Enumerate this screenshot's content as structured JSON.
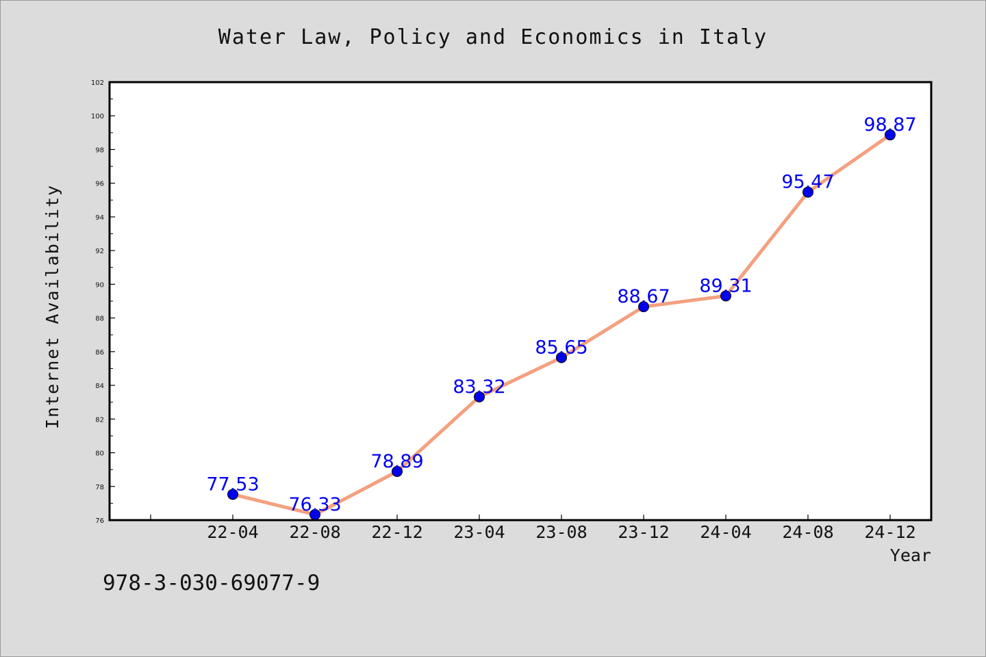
{
  "chart_data": {
    "type": "line",
    "title": "Water Law, Policy and Economics in Italy",
    "xlabel": "Year",
    "ylabel": "Internet Availability",
    "categories": [
      "22-04",
      "22-08",
      "22-12",
      "23-04",
      "23-08",
      "23-12",
      "24-04",
      "24-08",
      "24-12"
    ],
    "series": [
      {
        "values": [
          77.53,
          76.33,
          78.89,
          83.32,
          85.65,
          88.67,
          89.31,
          95.47,
          98.87
        ]
      }
    ],
    "data_labels": [
      "77.53",
      "76.33",
      "78.89",
      "83.32",
      "85.65",
      "88.67",
      "89.31",
      "95.47",
      "98.87"
    ],
    "ylim": [
      76,
      102
    ],
    "yticks": [
      76,
      78,
      80,
      82,
      84,
      86,
      88,
      90,
      92,
      94,
      96,
      98,
      100,
      102
    ],
    "grid": false,
    "legend": "none",
    "line_color": "#f4a07f",
    "marker_color": "#0000ee",
    "label_color": "#0000ee"
  },
  "footer": {
    "code": "978-3-030-69077-9"
  }
}
